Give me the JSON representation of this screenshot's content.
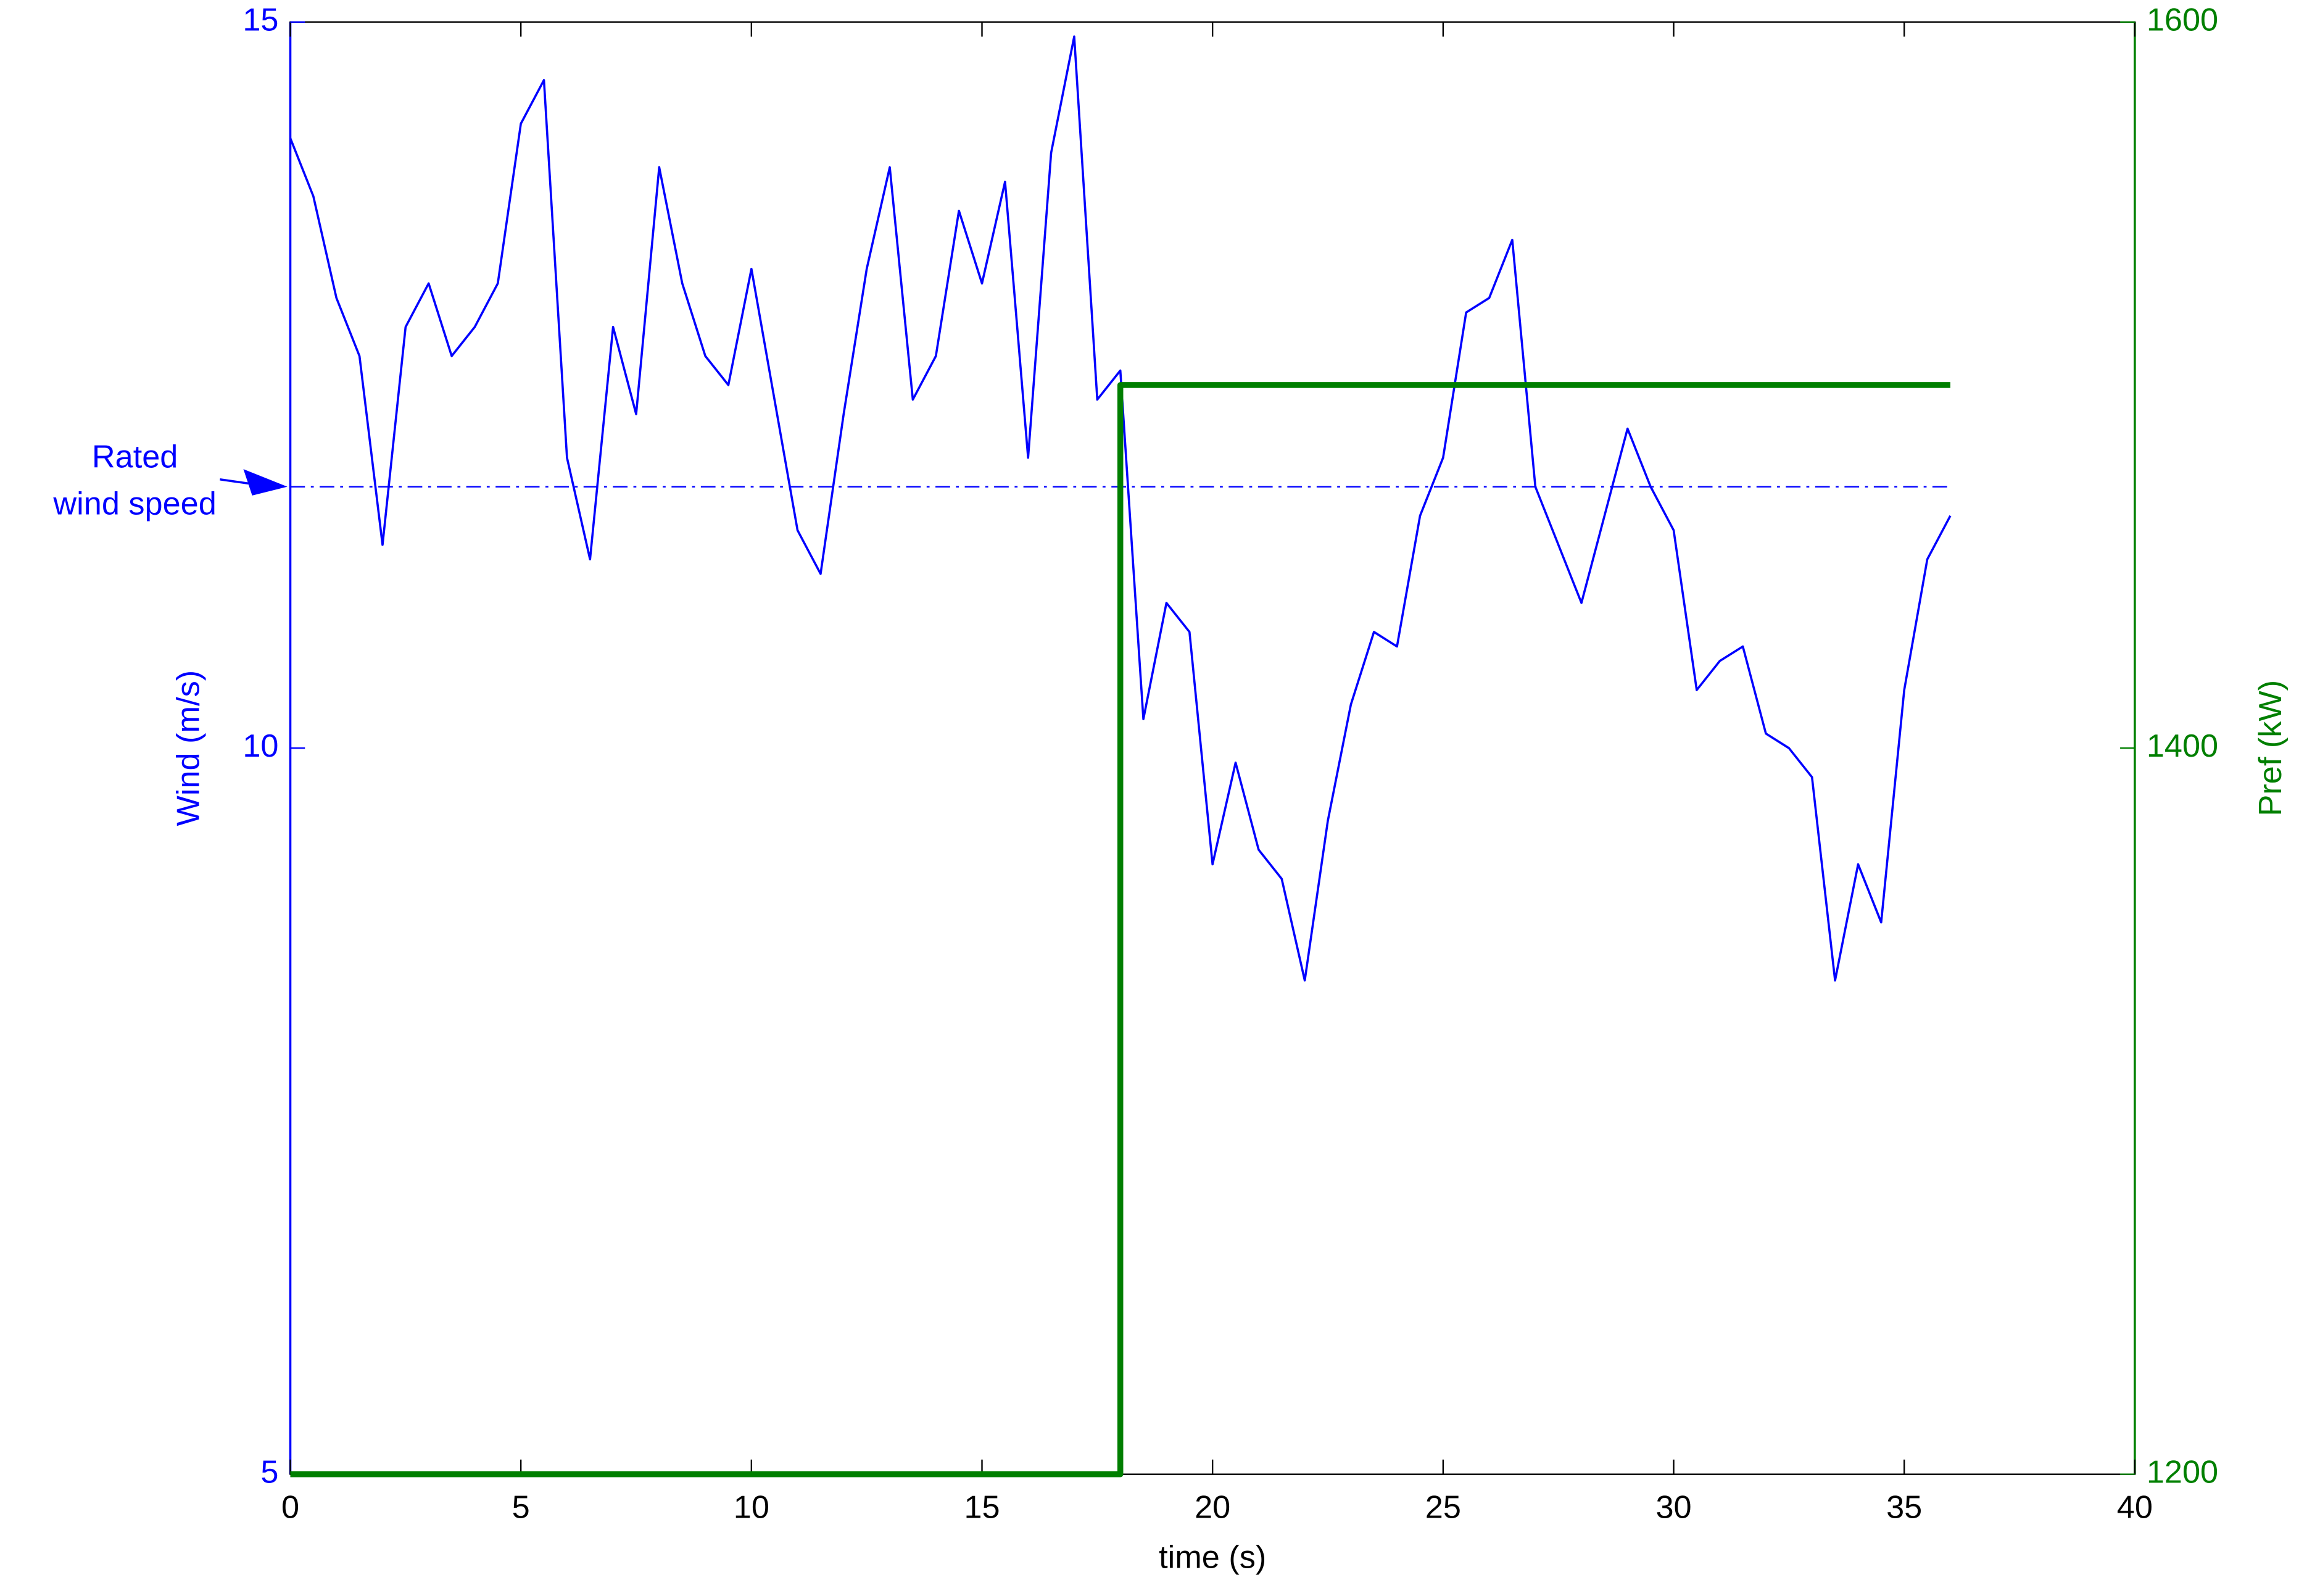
{
  "chart_data": {
    "type": "line",
    "xlabel": "time (s)",
    "ylabel": "Wind (m/s)",
    "y2label": "Pref (kW)",
    "xlim": [
      0,
      40
    ],
    "xticks": [
      0,
      5,
      10,
      15,
      20,
      25,
      30,
      35,
      40
    ],
    "ylim": [
      5,
      15
    ],
    "yticks": [
      5,
      10,
      15
    ],
    "y2lim": [
      1200,
      1600
    ],
    "y2ticks": [
      1200,
      1400,
      1600
    ],
    "axis_colors": {
      "y": "#0000ff",
      "y2": "#007f00"
    },
    "series": [
      {
        "color": "#0000ff",
        "axis": "y",
        "x": [
          0,
          0.5,
          1,
          1.5,
          2,
          2.5,
          3,
          3.5,
          4,
          4.5,
          5,
          5.5,
          6,
          6.5,
          7,
          7.5,
          8,
          8.5,
          9,
          9.5,
          10,
          10.5,
          11,
          11.5,
          12,
          12.5,
          13,
          13.5,
          14,
          14.5,
          15,
          15.5,
          16,
          16.5,
          17,
          17.5,
          18,
          18.5,
          19,
          19.5,
          20,
          20.5,
          21,
          21.5,
          22,
          22.5,
          23,
          23.5,
          24,
          24.5,
          25,
          25.5,
          26,
          26.5,
          27,
          27.5,
          28,
          28.5,
          29,
          29.5,
          30,
          30.5,
          31,
          31.5,
          32,
          32.5,
          33,
          33.5,
          34,
          34.5,
          35,
          35.5,
          36
        ],
        "values": [
          14.2,
          13.8,
          13.1,
          12.7,
          11.4,
          12.9,
          13.2,
          12.7,
          12.9,
          13.2,
          14.3,
          14.6,
          12.0,
          11.3,
          12.9,
          12.3,
          14.0,
          13.2,
          12.7,
          12.5,
          13.3,
          12.4,
          11.5,
          11.2,
          12.3,
          13.3,
          14.0,
          12.4,
          12.7,
          13.7,
          13.2,
          13.9,
          12.0,
          14.1,
          14.9,
          12.4,
          12.6,
          10.2,
          11.0,
          10.8,
          9.2,
          9.9,
          9.3,
          9.1,
          8.4,
          9.5,
          10.3,
          10.8,
          10.7,
          11.6,
          12.0,
          13.0,
          13.1,
          13.5,
          11.8,
          11.4,
          11.0,
          11.6,
          12.2,
          11.8,
          11.5,
          10.4,
          10.6,
          10.7,
          10.1,
          10.0,
          9.8,
          8.4,
          9.2,
          8.8,
          10.4,
          11.3,
          11.6
        ]
      },
      {
        "color": "#007f00",
        "axis": "y2",
        "x": [
          0,
          18,
          18,
          36
        ],
        "values": [
          1200,
          1200,
          1500,
          1500
        ]
      }
    ],
    "reference_line": {
      "value": 11.8,
      "style": "dash-dot",
      "color": "#0000ff"
    },
    "annotation": {
      "text": [
        "Rated",
        "wind speed"
      ],
      "color": "#0000ff"
    }
  }
}
